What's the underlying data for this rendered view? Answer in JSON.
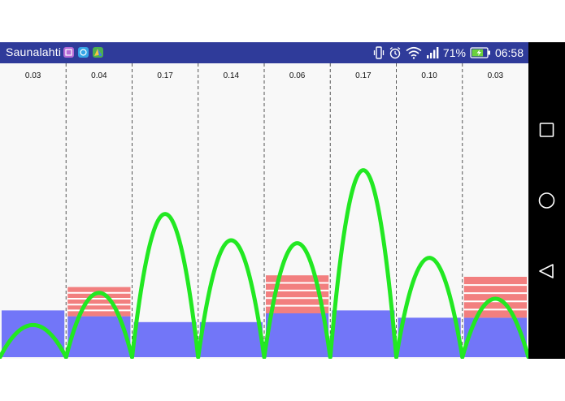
{
  "status_bar": {
    "carrier": "Saunalahti",
    "battery_percent": "71%",
    "time": "06:58",
    "icons": [
      "vibrate-icon",
      "alarm-icon",
      "wifi-icon",
      "signal-icon",
      "battery-charging-icon"
    ],
    "app_icons": [
      "purple-app-icon",
      "blue-app-icon",
      "maps-app-icon"
    ],
    "bar_color": "#2f3b9a"
  },
  "navigation_bar": {
    "buttons": [
      "recent-apps-button",
      "home-button",
      "back-button"
    ]
  },
  "chart_data": {
    "type": "bar",
    "categories": [
      "0.03",
      "0.04",
      "0.17",
      "0.14",
      "0.06",
      "0.17",
      "0.10",
      "0.03"
    ],
    "column_labels": [
      "0.03",
      "0.04",
      "0.17",
      "0.14",
      "0.06",
      "0.17",
      "0.10",
      "0.03"
    ],
    "ylim": [
      0,
      1
    ],
    "series": [
      {
        "values": [
          0.16,
          0.14,
          0.12,
          0.12,
          0.15,
          0.16,
          0.135,
          0.135
        ],
        "color": "#7276f8"
      },
      {
        "values": [
          0,
          0.1,
          0,
          0,
          0.13,
          0,
          0,
          0.14
        ],
        "color": "#f27f7f"
      },
      {
        "values": [
          0.11,
          0.22,
          0.49,
          0.4,
          0.39,
          0.64,
          0.34,
          0.2
        ],
        "color": "#22e822"
      }
    ],
    "grid": true,
    "colors": {
      "background": "#f8f8f8",
      "divider": "#555555"
    }
  }
}
